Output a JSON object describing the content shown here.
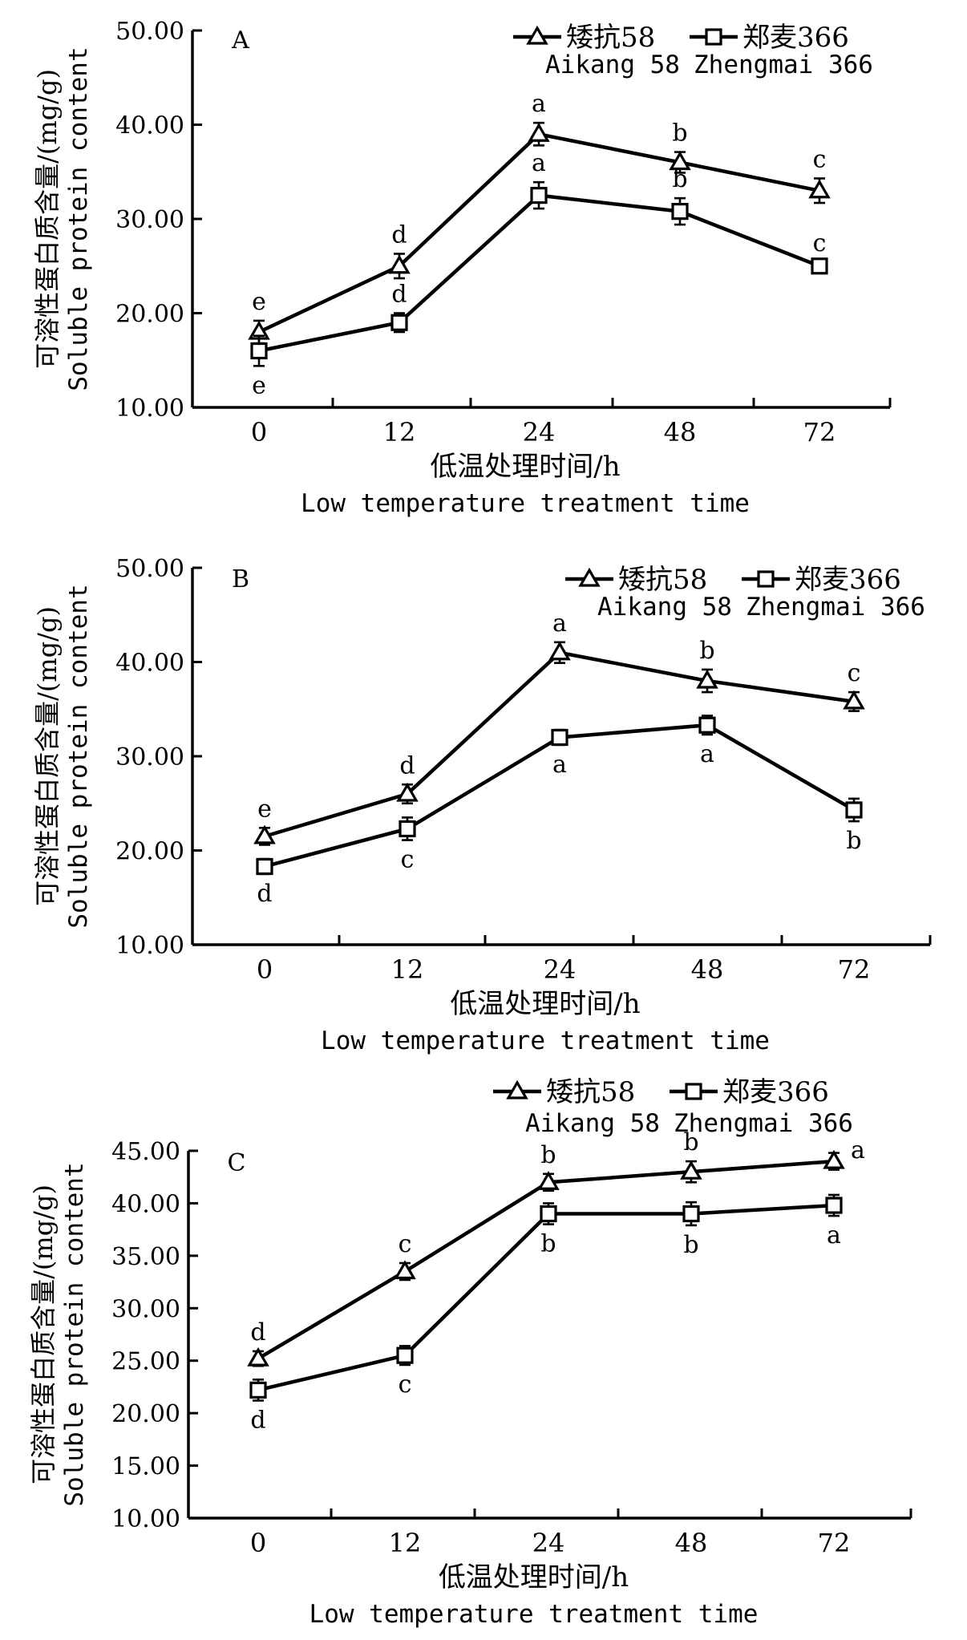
{
  "chart_data": [
    {
      "type": "line",
      "panel_label": "A",
      "ylabel_cn": "可溶性蛋白质含量/(mg/g)",
      "ylabel_en": "Soluble protein content",
      "xlabel_cn": "低温处理时间/h",
      "xlabel_en": "Low temperature treatment time",
      "categories": [
        "0",
        "12",
        "24",
        "48",
        "72"
      ],
      "ylim": [
        10,
        50
      ],
      "yticks": [
        "10.00",
        "20.00",
        "30.00",
        "40.00",
        "50.00"
      ],
      "series": [
        {
          "name_cn": "矮抗58",
          "name_en": "Aikang 58",
          "marker": "triangle",
          "values": [
            18,
            25,
            39,
            36,
            33
          ],
          "errors": [
            1.2,
            1.3,
            1.2,
            1.1,
            1.3
          ],
          "letters": [
            "e",
            "d",
            "a",
            "b",
            "c"
          ],
          "letter_pos": [
            "above",
            "above",
            "above",
            "above",
            "above"
          ]
        },
        {
          "name_cn": "郑麦366",
          "name_en": "Zhengmai 366",
          "marker": "square",
          "values": [
            16,
            19,
            32.5,
            30.8,
            25
          ],
          "errors": [
            1.6,
            1.0,
            1.4,
            1.4,
            0.4
          ],
          "letters": [
            "e",
            "d",
            "a",
            "b",
            "c"
          ],
          "letter_pos": [
            "below",
            "above",
            "above",
            "above",
            "above"
          ]
        }
      ]
    },
    {
      "type": "line",
      "panel_label": "B",
      "ylabel_cn": "可溶性蛋白质含量/(mg/g)",
      "ylabel_en": "Soluble protein content",
      "xlabel_cn": "低温处理时间/h",
      "xlabel_en": "Low temperature treatment time",
      "categories": [
        "0",
        "12",
        "24",
        "48",
        "72"
      ],
      "ylim": [
        10,
        50
      ],
      "yticks": [
        "10.00",
        "20.00",
        "30.00",
        "40.00",
        "50.00"
      ],
      "series": [
        {
          "name_cn": "矮抗58",
          "name_en": "Aikang 58",
          "marker": "triangle",
          "values": [
            21.5,
            26,
            41,
            38,
            35.8
          ],
          "errors": [
            0.9,
            1.0,
            1.1,
            1.2,
            1.0
          ],
          "letters": [
            "e",
            "d",
            "a",
            "b",
            "c"
          ],
          "letter_pos": [
            "above",
            "above",
            "above",
            "above",
            "above"
          ]
        },
        {
          "name_cn": "郑麦366",
          "name_en": "Zhengmai 366",
          "marker": "square",
          "values": [
            18.3,
            22.3,
            32,
            33.3,
            24.3
          ],
          "errors": [
            0.8,
            1.2,
            0.8,
            1.0,
            1.2
          ],
          "letters": [
            "d",
            "c",
            "a",
            "a",
            "b"
          ],
          "letter_pos": [
            "below",
            "below",
            "below",
            "below",
            "below"
          ]
        }
      ]
    },
    {
      "type": "line",
      "panel_label": "C",
      "ylabel_cn": "可溶性蛋白质含量/(mg/g)",
      "ylabel_en": "Soluble protein content",
      "xlabel_cn": "低温处理时间/h",
      "xlabel_en": "Low temperature treatment time",
      "categories": [
        "0",
        "12",
        "24",
        "48",
        "72"
      ],
      "ylim": [
        10,
        45
      ],
      "yticks": [
        "10.00",
        "15.00",
        "20.00",
        "25.00",
        "30.00",
        "35.00",
        "40.00",
        "45.00"
      ],
      "series": [
        {
          "name_cn": "矮抗58",
          "name_en": "Aikang 58",
          "marker": "triangle",
          "values": [
            25.2,
            33.5,
            42,
            43,
            44
          ],
          "errors": [
            0.7,
            0.8,
            0.8,
            1.0,
            0.8
          ],
          "letters": [
            "d",
            "c",
            "b",
            "b",
            "a"
          ],
          "letter_pos": [
            "above",
            "above",
            "above",
            "above",
            "right"
          ]
        },
        {
          "name_cn": "郑麦366",
          "name_en": "Zhengmai 366",
          "marker": "square",
          "values": [
            22.2,
            25.5,
            39,
            39,
            39.8
          ],
          "errors": [
            1.0,
            0.9,
            1.0,
            1.1,
            1.0
          ],
          "letters": [
            "d",
            "c",
            "b",
            "b",
            "a"
          ],
          "letter_pos": [
            "below",
            "below",
            "below",
            "below",
            "below"
          ]
        }
      ]
    }
  ]
}
